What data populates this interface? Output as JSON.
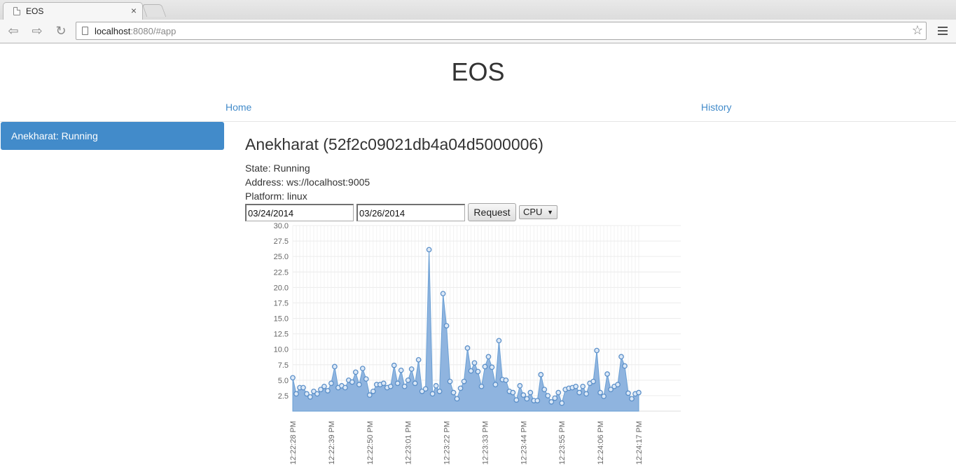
{
  "browser": {
    "tab_title": "EOS",
    "tab_close": "×",
    "url_host": "localhost",
    "url_rest": ":8080/#app"
  },
  "page": {
    "title": "EOS",
    "nav": {
      "home": "Home",
      "history": "History"
    }
  },
  "sidebar": {
    "items": [
      {
        "label": "Anekharat: Running",
        "active": true
      }
    ]
  },
  "detail": {
    "heading": "Anekharat (52f2c09021db4a04d5000006)",
    "state": "State: Running",
    "address": "Address: ws://localhost:9005",
    "platform": "Platform: linux"
  },
  "controls": {
    "start_date": "03/24/2014",
    "end_date": "03/26/2014",
    "request_label": "Request",
    "metric_selected": "CPU"
  },
  "colors": {
    "accent": "#428bca",
    "series": "#8fb4df",
    "series_stroke": "#6a9fd4"
  },
  "chart_data": {
    "type": "area",
    "ylim": [
      0,
      30
    ],
    "yticks": [
      "2.5",
      "5.0",
      "7.5",
      "10.0",
      "12.5",
      "15.0",
      "17.5",
      "20.0",
      "22.5",
      "25.0",
      "27.5",
      "30.0"
    ],
    "xticks": [
      "12:22:28 PM",
      "12:22:39 PM",
      "12:22:50 PM",
      "12:23:01 PM",
      "12:23:22 PM",
      "12:23:33 PM",
      "12:23:44 PM",
      "12:23:55 PM",
      "12:24:06 PM",
      "12:24:17 PM"
    ],
    "values": [
      5.4,
      2.8,
      3.8,
      3.8,
      2.8,
      2.3,
      3.2,
      2.8,
      3.5,
      4.0,
      3.3,
      4.5,
      7.2,
      3.8,
      4.1,
      3.8,
      5.0,
      4.7,
      6.3,
      4.3,
      6.9,
      5.2,
      2.6,
      3.2,
      4.3,
      4.3,
      4.5,
      3.8,
      4.0,
      7.4,
      4.5,
      6.6,
      4.0,
      5.0,
      6.8,
      4.5,
      8.3,
      3.2,
      3.6,
      26.1,
      2.8,
      4.1,
      3.2,
      19.0,
      13.8,
      4.8,
      3.0,
      2.0,
      3.7,
      4.8,
      10.2,
      6.5,
      7.8,
      6.4,
      4.0,
      7.2,
      8.8,
      7.1,
      4.3,
      11.4,
      5.1,
      5.0,
      3.2,
      3.0,
      1.8,
      4.1,
      2.6,
      2.0,
      3.0,
      1.7,
      1.7,
      5.9,
      3.5,
      2.5,
      1.5,
      2.1,
      3.0,
      1.3,
      3.5,
      3.7,
      3.8,
      4.0,
      3.0,
      4.0,
      2.8,
      4.5,
      4.8,
      9.8,
      3.0,
      2.4,
      6.0,
      3.5,
      4.0,
      4.3,
      8.8,
      7.3,
      2.9,
      2.0,
      2.8,
      3.0
    ]
  }
}
